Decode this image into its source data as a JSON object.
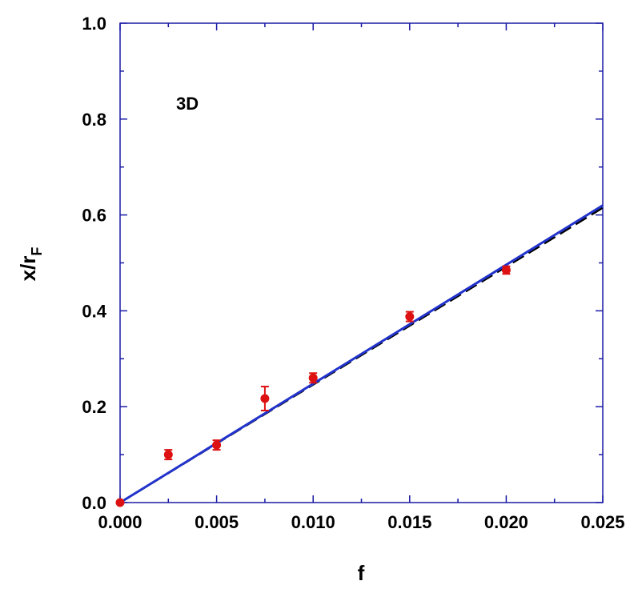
{
  "chart_data": {
    "type": "scatter",
    "xlabel": "f",
    "ylabel": {
      "main": "x/r",
      "sub": "F"
    },
    "annotation": "3D",
    "xlim": [
      0,
      0.025
    ],
    "ylim": [
      0,
      1.0
    ],
    "xticks": [
      0,
      0.005,
      0.01,
      0.015,
      0.02,
      0.025
    ],
    "xtick_labels": [
      "0.000",
      "0.005",
      "0.010",
      "0.015",
      "0.020",
      "0.025"
    ],
    "yticks": [
      0,
      0.2,
      0.4,
      0.6,
      0.8,
      1.0
    ],
    "ytick_labels": [
      "0.0",
      "0.2",
      "0.4",
      "0.6",
      "0.8",
      "1.0"
    ],
    "grid": false,
    "colors": {
      "frame": "#1a1aa6",
      "points": "#dd1111",
      "fit_solid": "#2233cc",
      "fit_dashed": "#000000"
    },
    "points": [
      {
        "x": 0.0,
        "y": 0.0,
        "yerr": 0.0
      },
      {
        "x": 0.0025,
        "y": 0.1,
        "yerr": 0.01
      },
      {
        "x": 0.005,
        "y": 0.12,
        "yerr": 0.01
      },
      {
        "x": 0.0075,
        "y": 0.217,
        "yerr": 0.025
      },
      {
        "x": 0.01,
        "y": 0.26,
        "yerr": 0.01
      },
      {
        "x": 0.015,
        "y": 0.388,
        "yerr": 0.01
      },
      {
        "x": 0.02,
        "y": 0.485,
        "yerr": 0.008
      }
    ],
    "lines": [
      {
        "style": "solid",
        "x": [
          0,
          0.025
        ],
        "y": [
          0,
          0.62
        ]
      },
      {
        "style": "dashed",
        "x": [
          0,
          0.025
        ],
        "y": [
          0,
          0.615
        ]
      }
    ]
  }
}
